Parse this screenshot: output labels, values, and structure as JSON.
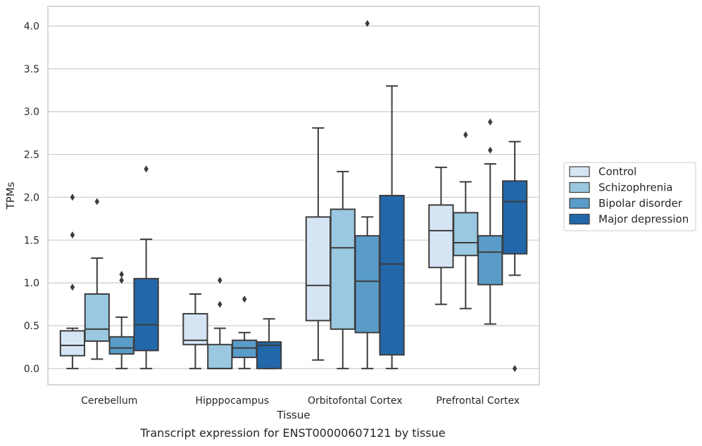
{
  "chart_data": {
    "type": "box",
    "categories": [
      "Cerebellum",
      "Hipppocampus",
      "Orbitofontal Cortex",
      "Prefrontal Cortex"
    ],
    "xlabel": "Tissue",
    "ylabel": "TPMs",
    "caption": "Transcript expression for ENST00000607121 by tissue",
    "ylim": [
      -0.19,
      4.23
    ],
    "yticks": [
      "0.0",
      "0.5",
      "1.0",
      "1.5",
      "2.0",
      "2.5",
      "3.0",
      "3.5",
      "4.0"
    ],
    "ytick_values": [
      0,
      0.5,
      1.0,
      1.5,
      2.0,
      2.5,
      3.0,
      3.5,
      4.0
    ],
    "grid": true,
    "legend_position": "right",
    "series": [
      {
        "name": "Control",
        "color": "#d6e5f4",
        "boxes": [
          {
            "whislo": 0.0,
            "q1": 0.15,
            "med": 0.27,
            "q3": 0.44,
            "whishi": 0.47,
            "fliers": [
              0.95,
              1.56,
              2.0
            ]
          },
          {
            "whislo": 0.0,
            "q1": 0.28,
            "med": 0.33,
            "q3": 0.64,
            "whishi": 0.87,
            "fliers": []
          },
          {
            "whislo": 0.1,
            "q1": 0.56,
            "med": 0.97,
            "q3": 1.77,
            "whishi": 2.81,
            "fliers": []
          },
          {
            "whislo": 0.75,
            "q1": 1.18,
            "med": 1.61,
            "q3": 1.91,
            "whishi": 2.35,
            "fliers": []
          }
        ]
      },
      {
        "name": "Schizophrenia",
        "color": "#9ac8e0",
        "boxes": [
          {
            "whislo": 0.11,
            "q1": 0.32,
            "med": 0.46,
            "q3": 0.87,
            "whishi": 1.29,
            "fliers": [
              1.95
            ]
          },
          {
            "whislo": 0.0,
            "q1": 0.0,
            "med": 0.0,
            "q3": 0.28,
            "whishi": 0.47,
            "fliers": [
              0.75,
              1.03
            ]
          },
          {
            "whislo": 0.0,
            "q1": 0.46,
            "med": 1.41,
            "q3": 1.86,
            "whishi": 2.3,
            "fliers": []
          },
          {
            "whislo": 0.7,
            "q1": 1.32,
            "med": 1.47,
            "q3": 1.82,
            "whishi": 2.18,
            "fliers": [
              2.73
            ]
          }
        ]
      },
      {
        "name": "Bipolar disorder",
        "color": "#5a9cc9",
        "boxes": [
          {
            "whislo": 0.0,
            "q1": 0.17,
            "med": 0.24,
            "q3": 0.37,
            "whishi": 0.6,
            "fliers": [
              1.03,
              1.1
            ]
          },
          {
            "whislo": 0.0,
            "q1": 0.13,
            "med": 0.24,
            "q3": 0.33,
            "whishi": 0.42,
            "fliers": [
              0.81
            ]
          },
          {
            "whislo": 0.0,
            "q1": 0.42,
            "med": 1.02,
            "q3": 1.55,
            "whishi": 1.77,
            "fliers": [
              4.03
            ]
          },
          {
            "whislo": 0.52,
            "q1": 0.98,
            "med": 1.36,
            "q3": 1.55,
            "whishi": 2.39,
            "fliers": [
              2.55,
              2.88
            ]
          }
        ]
      },
      {
        "name": "Major depression",
        "color": "#2267aa",
        "boxes": [
          {
            "whislo": 0.0,
            "q1": 0.21,
            "med": 0.51,
            "q3": 1.05,
            "whishi": 1.51,
            "fliers": [
              2.33
            ]
          },
          {
            "whislo": 0.0,
            "q1": 0.0,
            "med": 0.27,
            "q3": 0.31,
            "whishi": 0.58,
            "fliers": []
          },
          {
            "whislo": 0.0,
            "q1": 0.16,
            "med": 1.22,
            "q3": 2.02,
            "whishi": 3.3,
            "fliers": []
          },
          {
            "whislo": 1.09,
            "q1": 1.34,
            "med": 1.95,
            "q3": 2.19,
            "whishi": 2.65,
            "fliers": [
              0.0
            ]
          }
        ]
      }
    ]
  }
}
